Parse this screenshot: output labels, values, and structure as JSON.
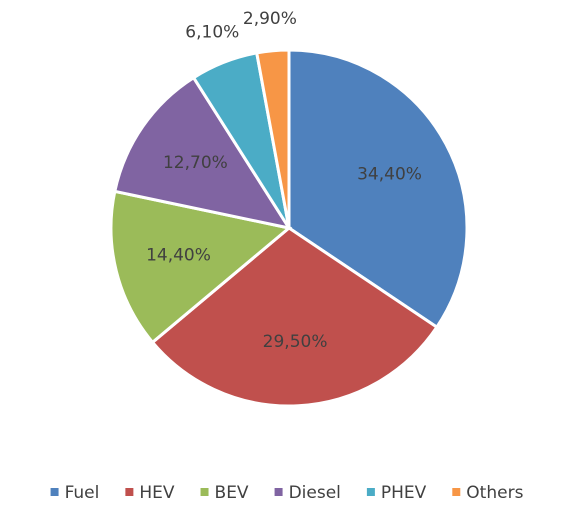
{
  "chart_data": {
    "type": "pie",
    "categories": [
      "Fuel",
      "HEV",
      "BEV",
      "Diesel",
      "PHEV",
      "Others"
    ],
    "values": [
      34.4,
      29.5,
      14.4,
      12.7,
      6.1,
      2.9
    ],
    "value_labels": [
      "34,40%",
      "29,50%",
      "14,40%",
      "12,70%",
      "6,10%",
      "2,90%"
    ],
    "colors": [
      "#4f81bd",
      "#c0504d",
      "#9bbb59",
      "#8064a2",
      "#4bacc6",
      "#f79646"
    ],
    "legend": "bottom"
  }
}
